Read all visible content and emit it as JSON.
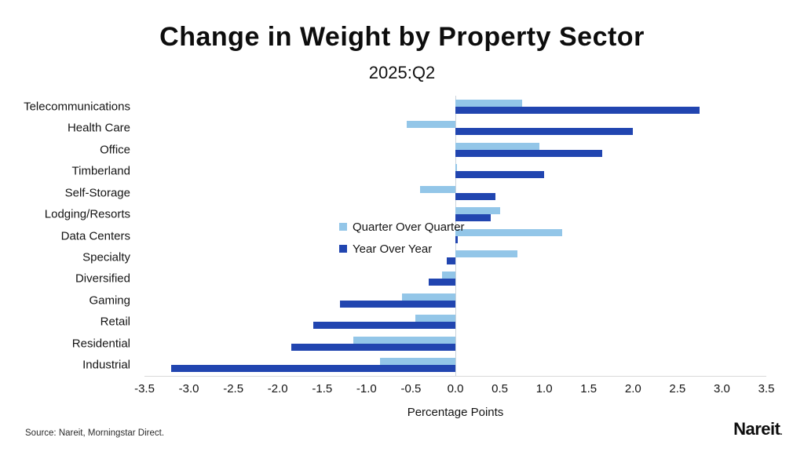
{
  "header": {
    "title": "Change in Weight by Property Sector",
    "subtitle": "2025:Q2"
  },
  "chart_data": {
    "type": "bar",
    "orientation": "horizontal",
    "title": "Change in Weight by Property Sector",
    "subtitle": "2025:Q2",
    "xlabel": "Percentage Points",
    "xlim": [
      -3.5,
      3.5
    ],
    "xticks": [
      -3.5,
      -3.0,
      -2.5,
      -2.0,
      -1.5,
      -1.0,
      -0.5,
      0.0,
      0.5,
      1.0,
      1.5,
      2.0,
      2.5,
      3.0,
      3.5
    ],
    "grid": false,
    "legend_position": "inside-upper-left",
    "categories": [
      "Telecommunications",
      "Health Care",
      "Office",
      "Timberland",
      "Self-Storage",
      "Lodging/Resorts",
      "Data Centers",
      "Specialty",
      "Diversified",
      "Gaming",
      "Retail",
      "Residential",
      "Industrial"
    ],
    "series": [
      {
        "name": "Quarter Over Quarter",
        "color": "#93c6e8",
        "values": [
          0.75,
          -0.55,
          0.95,
          0.02,
          -0.4,
          0.5,
          1.2,
          0.7,
          -0.15,
          -0.6,
          -0.45,
          -1.15,
          -0.85
        ]
      },
      {
        "name": "Year Over Year",
        "color": "#2145b0",
        "values": [
          2.75,
          2.0,
          1.65,
          1.0,
          0.45,
          0.4,
          0.03,
          -0.1,
          -0.3,
          -1.3,
          -1.6,
          -1.85,
          -3.2
        ]
      }
    ]
  },
  "colors": {
    "qoq": "#93c6e8",
    "yoy": "#2145b0",
    "zero_line": "#c9d3dc"
  },
  "footer": {
    "source": "Source: Nareit, Morningstar Direct.",
    "logo_text": "Nareit",
    "logo_dot": "."
  }
}
